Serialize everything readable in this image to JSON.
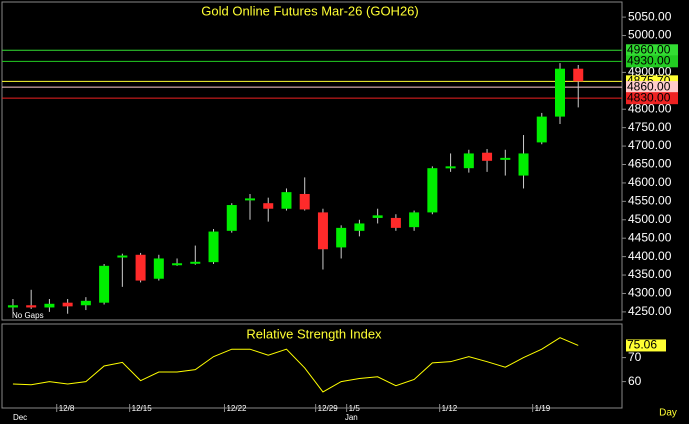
{
  "chart_data": [
    {
      "type": "candlestick",
      "title": "Gold Online Futures Mar-26 (GOH26)",
      "note": "No Gaps",
      "up_color": "#00ee00",
      "down_color": "#ff2a2a",
      "open": [
        4262,
        4268,
        4262,
        4275,
        4268,
        4275,
        4400,
        4405,
        4340,
        4378,
        4382,
        4385,
        4470,
        4553,
        4545,
        4530,
        4570,
        4520,
        4425,
        4470,
        4505,
        4505,
        4480,
        4520,
        4640,
        4640,
        4682,
        4665,
        4620,
        4710,
        4780,
        4910
      ],
      "high": [
        4285,
        4310,
        4285,
        4285,
        4290,
        4380,
        4408,
        4410,
        4405,
        4395,
        4430,
        4475,
        4545,
        4570,
        4560,
        4585,
        4615,
        4530,
        4485,
        4500,
        4530,
        4515,
        4525,
        4645,
        4680,
        4690,
        4692,
        4690,
        4730,
        4790,
        4925,
        4920
      ],
      "low": [
        4250,
        4258,
        4250,
        4245,
        4255,
        4270,
        4318,
        4330,
        4335,
        4375,
        4378,
        4380,
        4465,
        4500,
        4495,
        4525,
        4525,
        4365,
        4395,
        4455,
        4490,
        4470,
        4470,
        4515,
        4630,
        4628,
        4630,
        4620,
        4585,
        4705,
        4760,
        4805
      ],
      "close": [
        4268,
        4262,
        4272,
        4265,
        4280,
        4375,
        4403,
        4335,
        4395,
        4382,
        4386,
        4468,
        4540,
        4558,
        4530,
        4575,
        4528,
        4420,
        4478,
        4490,
        4512,
        4478,
        4520,
        4640,
        4645,
        4680,
        4660,
        4668,
        4680,
        4780,
        4910,
        4875.7
      ],
      "xlim": [
        -0.6,
        33.4
      ],
      "ylim": [
        4228,
        5091
      ],
      "yticks": [
        {
          "value": 5050,
          "label": "5050.00"
        },
        {
          "value": 5000,
          "label": "5000.00"
        },
        {
          "value": 4900,
          "label": "4900.00"
        },
        {
          "value": 4800,
          "label": "4800.00"
        },
        {
          "value": 4750,
          "label": "4750.00"
        },
        {
          "value": 4700,
          "label": "4700.00"
        },
        {
          "value": 4650,
          "label": "4650.00"
        },
        {
          "value": 4600,
          "label": "4600.00"
        },
        {
          "value": 4550,
          "label": "4550.00"
        },
        {
          "value": 4500,
          "label": "4500.00"
        },
        {
          "value": 4450,
          "label": "4450.00"
        },
        {
          "value": 4400,
          "label": "4400.00"
        },
        {
          "value": 4350,
          "label": "4350.00"
        },
        {
          "value": 4300,
          "label": "4300.00"
        },
        {
          "value": 4250,
          "label": "4250.00"
        }
      ],
      "levels": [
        {
          "value": 4960,
          "label": "4960.00",
          "color": "#33dd33"
        },
        {
          "value": 4930,
          "label": "4930.00",
          "color": "#22cc22"
        },
        {
          "value": 4875.7,
          "label": "4875.70",
          "color": "#ffff33"
        },
        {
          "value": 4860,
          "label": "4860.00",
          "color": "#ffcccc"
        },
        {
          "value": 4830,
          "label": "4830.00",
          "color": "#ee2222"
        }
      ]
    },
    {
      "type": "line",
      "title": "Relative Strength Index",
      "color": "#ffff00",
      "values": [
        59,
        58.7,
        60,
        59,
        60,
        66.5,
        68,
        60.4,
        64,
        64,
        65,
        70.4,
        73.5,
        73.5,
        71,
        73.5,
        65.7,
        55.7,
        60,
        61.3,
        62,
        58.3,
        60.9,
        67.8,
        68.3,
        70.4,
        68.3,
        66,
        70,
        73.5,
        78.3,
        75.06
      ],
      "xlim": [
        -0.6,
        33.4
      ],
      "ylim": [
        49,
        84
      ],
      "yticks": [
        70,
        60
      ],
      "last_label": {
        "value": 75.06,
        "label": "75.06"
      },
      "xticks": [
        {
          "value": 2.4,
          "label": "12/8"
        },
        {
          "value": 6.4,
          "label": "12/15"
        },
        {
          "value": 11.6,
          "label": "12/22"
        },
        {
          "value": 16.6,
          "label": "12/29"
        },
        {
          "value": 18.3,
          "label": "1/5"
        },
        {
          "value": 23.4,
          "label": "1/12"
        },
        {
          "value": 28.5,
          "label": "1/19"
        }
      ],
      "months": [
        {
          "value": 0,
          "label": "Dec"
        },
        {
          "value": 18.2,
          "label": "Jan"
        }
      ],
      "period": "Day"
    }
  ]
}
